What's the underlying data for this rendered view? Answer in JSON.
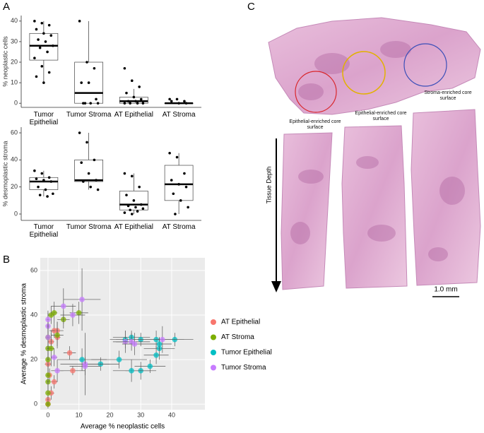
{
  "chart_data": [
    {
      "type": "box",
      "panel_label": "A",
      "ylabel": "% neoplastic cells",
      "categories": [
        "Tumor Epithelial",
        "Tumor Stroma",
        "AT Epithelial",
        "AT Stroma"
      ],
      "boxes": [
        {
          "min": 10,
          "q1": 21,
          "median": 28,
          "q3": 34,
          "max": 40,
          "points": [
            40,
            39,
            38,
            36,
            34,
            33,
            31,
            30,
            28,
            27,
            25,
            22,
            18,
            15,
            13,
            10
          ]
        },
        {
          "min": 0,
          "q1": 0,
          "median": 5,
          "q3": 20,
          "max": 40,
          "points": [
            40,
            20,
            17,
            10,
            10,
            2,
            0,
            0,
            0,
            0
          ]
        },
        {
          "min": 0,
          "q1": 0,
          "median": 1,
          "q3": 3,
          "max": 7,
          "points": [
            17,
            11,
            8,
            5,
            3,
            2,
            1,
            1,
            0,
            0,
            0,
            0
          ]
        },
        {
          "min": 0,
          "q1": 0,
          "median": 0,
          "q3": 0,
          "max": 0,
          "points": [
            2,
            2,
            1,
            1,
            0,
            0
          ]
        }
      ],
      "ylim": [
        -2,
        42.7
      ],
      "yticks": [
        0,
        10,
        20,
        30,
        40
      ]
    },
    {
      "type": "box",
      "ylabel": "% desmoplastic stroma",
      "categories": [
        "Tumor Epithelial",
        "Tumor Stroma",
        "AT Epithelial",
        "AT Stroma"
      ],
      "boxes": [
        {
          "min": 13,
          "q1": 18,
          "median": 24,
          "q3": 27,
          "max": 32,
          "points": [
            32,
            30,
            27,
            26,
            25,
            24,
            20,
            18,
            15,
            14,
            13
          ]
        },
        {
          "min": 18,
          "q1": 24,
          "median": 25,
          "q3": 40,
          "max": 60,
          "points": [
            60,
            53,
            40,
            38,
            30,
            25,
            24,
            20,
            18
          ]
        },
        {
          "min": 0,
          "q1": 3,
          "median": 7,
          "q3": 17,
          "max": 30,
          "points": [
            30,
            28,
            20,
            14,
            10,
            7,
            6,
            5,
            4,
            3,
            2,
            1,
            0
          ]
        },
        {
          "min": 0,
          "q1": 10,
          "median": 22,
          "q3": 36,
          "max": 45,
          "points": [
            45,
            42,
            30,
            25,
            22,
            20,
            15,
            10,
            5,
            0
          ]
        }
      ],
      "ylim": [
        -4.7,
        64.2
      ],
      "yticks": [
        0,
        20,
        40,
        60
      ]
    },
    {
      "type": "scatter",
      "panel_label": "B",
      "xlabel": "Average % neoplastic cells",
      "ylabel": "Average % desmoplastic stroma",
      "xlim": [
        -2.5,
        50.75
      ],
      "xticks": [
        0,
        10,
        20,
        30,
        40
      ],
      "ylim": [
        -2.5,
        65.7
      ],
      "yticks": [
        0,
        20,
        40,
        60
      ],
      "grid": true,
      "legend": "right",
      "series": [
        {
          "name": "AT Epithelial",
          "color": "#F8766D",
          "x": [
            0,
            0,
            0,
            1,
            1,
            2,
            3,
            2,
            7,
            8,
            3,
            0.5
          ],
          "values": [
            0,
            2,
            18,
            5,
            28,
            33,
            33,
            10,
            23,
            15,
            30,
            13
          ],
          "xerr": [
            0.5,
            0.5,
            1,
            1,
            1,
            1.5,
            2,
            1,
            2,
            4,
            1,
            0.5
          ],
          "yerr": [
            1,
            2,
            5,
            3,
            4,
            3,
            4,
            3,
            3,
            2,
            4,
            3
          ]
        },
        {
          "name": "AT Stroma",
          "color": "#7CAE00",
          "x": [
            0,
            0,
            0,
            0,
            0,
            1,
            1,
            2,
            3,
            5,
            10,
            0,
            0
          ],
          "values": [
            0,
            5,
            10,
            20,
            25,
            25,
            40,
            41,
            31,
            38,
            41,
            30,
            13
          ],
          "xerr": [
            0.3,
            0.3,
            0.5,
            0.5,
            0.5,
            1,
            1,
            1,
            2,
            2,
            3,
            0.5,
            0.5
          ],
          "yerr": [
            2,
            3,
            4,
            6,
            5,
            8,
            4,
            5,
            6,
            4,
            5,
            8,
            5
          ]
        },
        {
          "name": "Tumor Epithelial",
          "color": "#00BFC4",
          "x": [
            25,
            27,
            30,
            35,
            41,
            36,
            35,
            33,
            30,
            27,
            23,
            17,
            11,
            36
          ],
          "values": [
            29,
            30,
            29,
            29,
            29,
            25,
            22,
            17,
            15,
            15,
            20,
            18,
            20,
            27
          ],
          "xerr": [
            5,
            6,
            8,
            6,
            6,
            5,
            4,
            5,
            5,
            6,
            9,
            6,
            8,
            4
          ],
          "yerr": [
            4,
            3,
            3,
            4,
            3,
            5,
            4,
            3,
            4,
            5,
            4,
            3,
            5,
            3
          ]
        },
        {
          "name": "Tumor Stroma",
          "color": "#C77CFF",
          "x": [
            0,
            0,
            2,
            3,
            5,
            8,
            11,
            12,
            25,
            27,
            28,
            37,
            0,
            12
          ],
          "values": [
            35,
            38,
            21,
            15,
            44,
            40,
            47,
            18,
            28,
            28,
            27,
            29,
            30,
            17
          ],
          "xerr": [
            0.5,
            0.5,
            1,
            2,
            4,
            4,
            6,
            8,
            3,
            6,
            4,
            7,
            0.5,
            5
          ],
          "yerr": [
            6,
            4,
            4,
            5,
            8,
            5,
            14,
            14,
            5,
            4,
            5,
            6,
            6,
            4
          ]
        }
      ]
    }
  ],
  "image_panel": {
    "panel_label": "C",
    "annotations": [
      "Stroma-enriched core surface",
      "Epithelial-enriched core surface",
      "Epithelial-enriched core surface"
    ],
    "axis_label": "Tissue Depth",
    "scale_bar": "1.0 mm"
  }
}
